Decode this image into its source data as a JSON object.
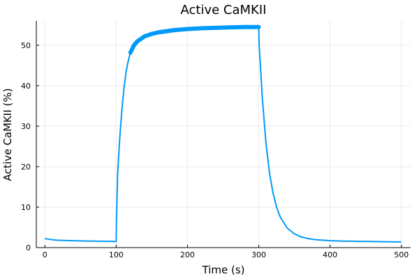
{
  "chart_data": {
    "type": "line",
    "title": "Active CaMKII",
    "xlabel": "Time (s)",
    "ylabel": "Active CaMKII (%)",
    "xlim": [
      -12,
      513
    ],
    "ylim": [
      0,
      56
    ],
    "xticks": [
      0,
      100,
      200,
      300,
      400,
      500
    ],
    "yticks": [
      0,
      10,
      20,
      30,
      40,
      50
    ],
    "grid": true,
    "legend": "none",
    "series": [
      {
        "color": "#009AF9",
        "x": [
          0,
          5,
          10,
          15,
          20,
          30,
          50,
          70,
          90,
          100,
          100.5,
          102,
          105,
          108,
          111,
          114,
          117,
          120,
          125,
          130,
          140,
          150,
          160,
          180,
          200,
          220,
          240,
          260,
          280,
          300,
          300.5,
          302,
          305,
          310,
          315,
          320,
          325,
          330,
          340,
          350,
          360,
          370,
          380,
          400,
          420,
          440,
          460,
          480,
          500
        ],
        "y": [
          2.2,
          2.1,
          1.95,
          1.85,
          1.8,
          1.75,
          1.65,
          1.6,
          1.55,
          1.5,
          7,
          18,
          27,
          34,
          39.5,
          43.5,
          46.2,
          48.2,
          50,
          51,
          52.2,
          52.8,
          53.2,
          53.7,
          54.0,
          54.2,
          54.3,
          54.4,
          54.5,
          54.5,
          50,
          46,
          37,
          26,
          18.5,
          13.5,
          10,
          7.6,
          4.8,
          3.4,
          2.6,
          2.2,
          1.95,
          1.7,
          1.6,
          1.55,
          1.5,
          1.45,
          1.4
        ]
      }
    ]
  }
}
